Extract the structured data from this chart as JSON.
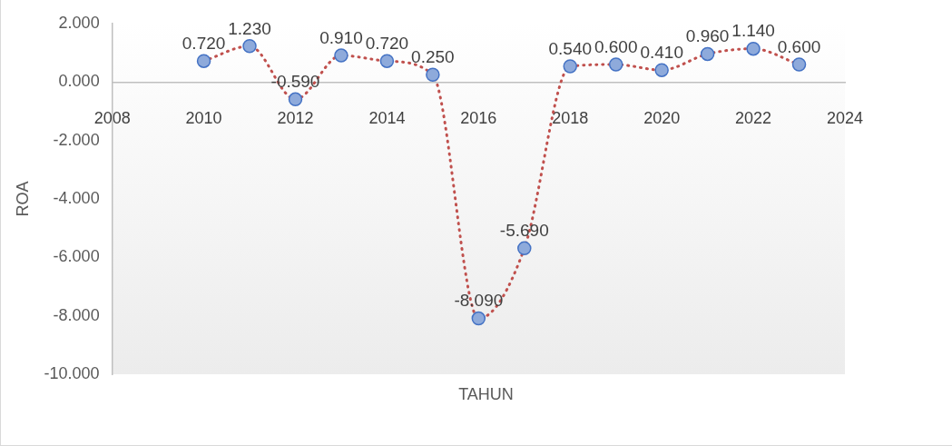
{
  "chart_data": {
    "type": "scatter",
    "xlabel": "TAHUN",
    "ylabel": "ROA",
    "x": [
      2010,
      2011,
      2012,
      2013,
      2014,
      2015,
      2016,
      2017,
      2018,
      2019,
      2020,
      2021,
      2022,
      2023
    ],
    "series": [
      {
        "type": "scatter",
        "color": "#8eaadb",
        "marker": "circle",
        "values": [
          0.72,
          1.23,
          -0.59,
          0.91,
          0.72,
          0.25,
          -8.09,
          -5.69,
          0.54,
          0.6,
          0.41,
          0.96,
          1.14,
          0.6
        ],
        "value_labels": [
          "0.720",
          "1.230",
          "-0.590",
          "0.910",
          "0.720",
          "0.250",
          "-8.090",
          "-5.690",
          "0.540",
          "0.600",
          "0.410",
          "0.960",
          "1.140",
          "0.600"
        ]
      },
      {
        "type": "line",
        "color": "#c0504d",
        "marker": "none",
        "line_style": "dotted",
        "values": [
          0.72,
          1.23,
          -0.59,
          0.91,
          0.72,
          0.25,
          -8.09,
          -5.69,
          0.54,
          0.6,
          0.41,
          0.96,
          1.14,
          0.6
        ]
      }
    ],
    "xlim": [
      2008,
      2024
    ],
    "xticks": [
      2008,
      2010,
      2012,
      2014,
      2016,
      2018,
      2020,
      2022,
      2024
    ],
    "ylim": [
      -10,
      2
    ],
    "yticks": [
      {
        "value": -10,
        "label": "-10.000"
      },
      {
        "value": -8,
        "label": "-8.000"
      },
      {
        "value": -6,
        "label": "-6.000"
      },
      {
        "value": -4,
        "label": "-4.000"
      },
      {
        "value": -2,
        "label": "-2.000"
      },
      {
        "value": 0,
        "label": "0.000"
      },
      {
        "value": 2,
        "label": "2.000"
      }
    ],
    "grid": false,
    "legend": false
  }
}
